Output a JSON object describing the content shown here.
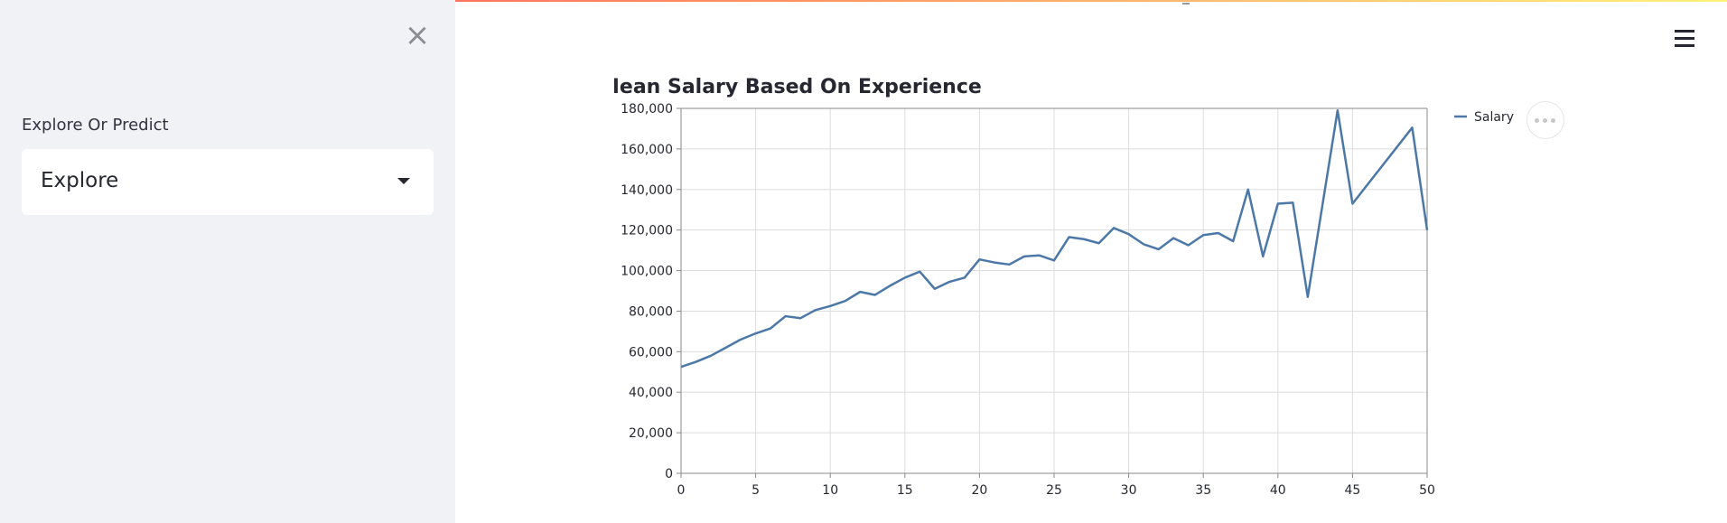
{
  "sidebar": {
    "close_icon": "close-icon",
    "select_label": "Explore Or Predict",
    "select_value": "Explore"
  },
  "header": {
    "menu_icon": "hamburger-menu-icon"
  },
  "chart_data": {
    "type": "line",
    "title": "Mean Salary Based On Experience",
    "xlabel": "",
    "ylabel": "",
    "xlim": [
      0,
      50
    ],
    "ylim": [
      0,
      180000
    ],
    "xticks": [
      0,
      5,
      10,
      15,
      20,
      25,
      30,
      35,
      40,
      45,
      50
    ],
    "yticks": [
      0,
      20000,
      40000,
      60000,
      80000,
      100000,
      120000,
      140000,
      160000,
      180000
    ],
    "grid": true,
    "legend_position": "top-right",
    "series": [
      {
        "name": "Salary",
        "color": "#4c78a8",
        "x": [
          0,
          1,
          2,
          3,
          4,
          5,
          6,
          7,
          8,
          9,
          10,
          11,
          12,
          13,
          14,
          15,
          16,
          17,
          18,
          19,
          20,
          21,
          22,
          23,
          24,
          25,
          26,
          27,
          28,
          29,
          30,
          31,
          32,
          33,
          34,
          35,
          36,
          37,
          38,
          39,
          40,
          41,
          42,
          44,
          45,
          49,
          50
        ],
        "y": [
          52500,
          55000,
          58000,
          62000,
          66000,
          69000,
          71500,
          77500,
          76500,
          80500,
          82500,
          85000,
          89500,
          88000,
          92500,
          96500,
          99500,
          91000,
          94500,
          96500,
          105500,
          104000,
          103000,
          107000,
          107500,
          105000,
          116500,
          115500,
          113500,
          121000,
          118000,
          113000,
          110500,
          116000,
          112500,
          117500,
          118500,
          114500,
          140000,
          107000,
          133000,
          133500,
          87000,
          179000,
          133000,
          170500,
          120000
        ]
      }
    ]
  }
}
